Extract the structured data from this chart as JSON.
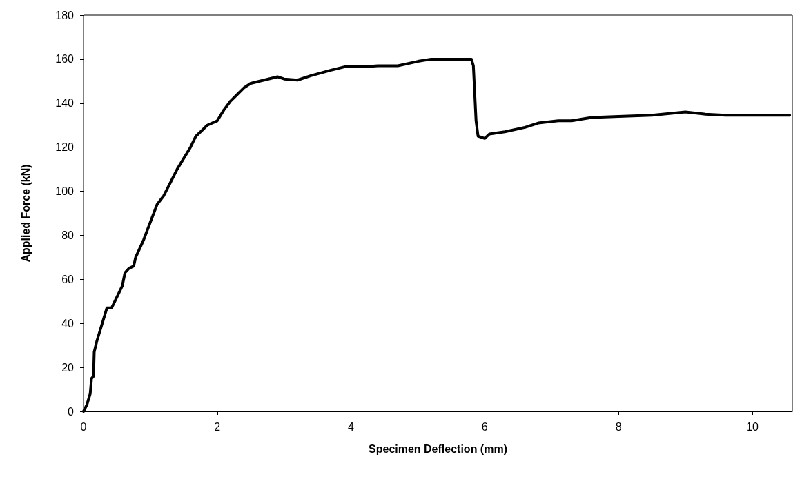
{
  "chart_data": {
    "type": "line",
    "xlabel": "Specimen Deflection (mm)",
    "ylabel": "Applied Force (kN)",
    "xlim": [
      0,
      10.6
    ],
    "xticks": [
      0,
      2,
      4,
      6,
      8,
      10
    ],
    "ylim": [
      0,
      180
    ],
    "yticks": [
      0,
      20,
      40,
      60,
      80,
      100,
      120,
      140,
      160,
      180
    ],
    "marker": "none",
    "line_style": "solid",
    "series": [
      {
        "color": "#000000",
        "x": [
          0,
          0.05,
          0.1,
          0.12,
          0.15,
          0.16,
          0.2,
          0.28,
          0.35,
          0.42,
          0.5,
          0.58,
          0.62,
          0.68,
          0.75,
          0.78,
          0.9,
          1.0,
          1.1,
          1.2,
          1.3,
          1.4,
          1.5,
          1.6,
          1.68,
          1.75,
          1.85,
          2.0,
          2.1,
          2.2,
          2.3,
          2.4,
          2.5,
          2.7,
          2.9,
          3.0,
          3.2,
          3.4,
          3.7,
          3.9,
          4.2,
          4.4,
          4.7,
          5.0,
          5.2,
          5.8,
          5.83,
          5.87,
          5.9,
          6.0,
          6.07,
          6.3,
          6.6,
          6.8,
          7.1,
          7.3,
          7.6,
          8.0,
          8.5,
          9.0,
          9.3,
          9.6,
          10.56
        ],
        "values": [
          0,
          3,
          8,
          15,
          16,
          27,
          32,
          40,
          47,
          47,
          52,
          57,
          63,
          65,
          66,
          70,
          78,
          86,
          94,
          98,
          104,
          110,
          115,
          120,
          125,
          127,
          130,
          132,
          137,
          141,
          144,
          147,
          149,
          150.5,
          152,
          151,
          150.5,
          152.5,
          155,
          156.5,
          156.5,
          157,
          157,
          159,
          160,
          160,
          157,
          132,
          125,
          124,
          126,
          127,
          129,
          131,
          132,
          132,
          133.5,
          134,
          134.5,
          136,
          135,
          134.5,
          134.5
        ]
      }
    ]
  }
}
